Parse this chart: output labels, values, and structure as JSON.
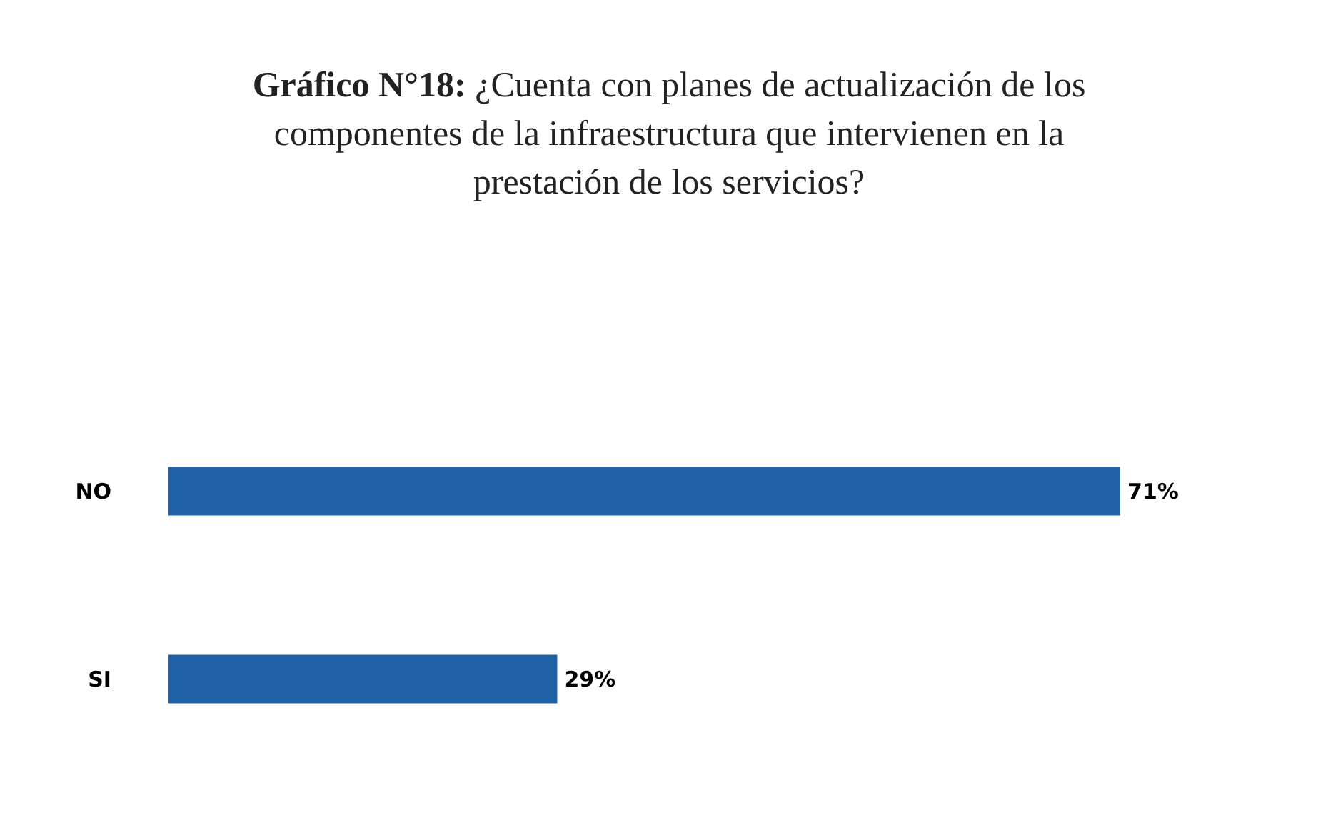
{
  "chart_data": {
    "type": "bar",
    "orientation": "horizontal",
    "title": "Gráfico N°18: ¿Cuenta con planes de actualización de los componentes de la infraestructura que intervienen en la prestación de los servicios?",
    "categories": [
      "NO",
      "SI"
    ],
    "values": [
      71,
      29
    ],
    "value_labels": [
      "71%",
      "29%"
    ],
    "color": "#1f63a6"
  }
}
